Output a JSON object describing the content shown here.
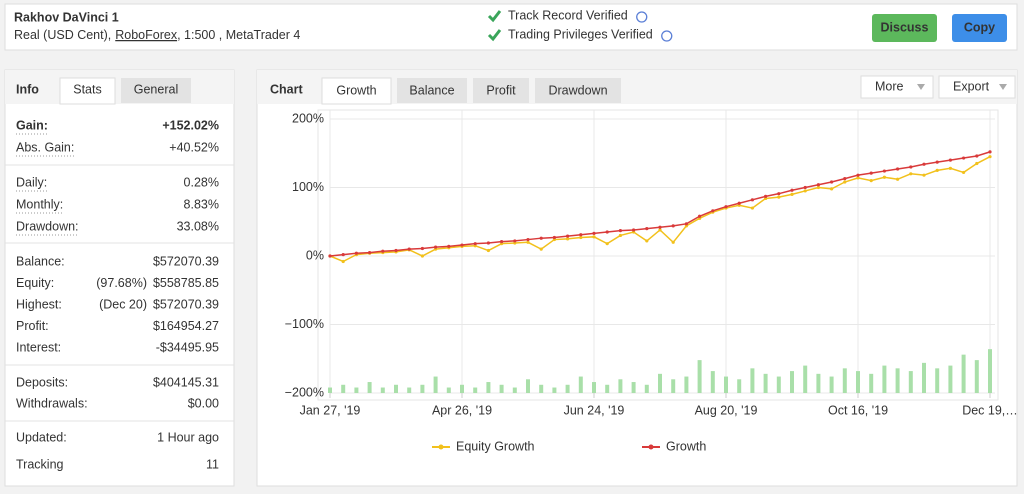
{
  "header": {
    "title": "Rakhov DaVinci 1",
    "account": "Real (USD Cent),",
    "broker": "RoboForex",
    "platform": ", 1:500 , MetaTrader 4",
    "verifications": [
      "Track Record Verified",
      "Trading Privileges Verified"
    ],
    "buttons": [
      "Discuss",
      "Copy"
    ]
  },
  "info": {
    "tabs": [
      "Info",
      "Stats",
      "General"
    ],
    "groups": [
      [
        {
          "label": "Gain:",
          "value": "+152.02%",
          "color": "#1e9e2c"
        },
        {
          "label": "Abs. Gain:",
          "value": "+40.52%",
          "color": "#1e9e2c"
        }
      ],
      [
        {
          "label": "Daily:",
          "value": "0.28%"
        },
        {
          "label": "Monthly:",
          "value": "8.83%"
        },
        {
          "label": "Drawdown:",
          "value": "33.08%"
        }
      ],
      [
        {
          "label": "Balance:",
          "value": "$572070.39"
        },
        {
          "label": "Equity:",
          "note": "(97.68%)",
          "value": "$558785.85"
        },
        {
          "label": "Highest:",
          "note": "(Dec 20)",
          "value": "$572070.39"
        },
        {
          "label": "Profit:",
          "value": "$164954.27",
          "color": "#1e9e2c"
        },
        {
          "label": "Interest:",
          "value": "-$34495.95"
        }
      ],
      [
        {
          "label": "Deposits:",
          "value": "$404145.31"
        },
        {
          "label": "Withdrawals:",
          "value": "$0.00"
        }
      ],
      [
        {
          "label": "Updated:",
          "value": "1 Hour ago"
        },
        {
          "label": "Tracking",
          "value": "11"
        }
      ]
    ]
  },
  "chart_panel": {
    "title": "Chart",
    "tabs": [
      "Growth",
      "Balance",
      "Profit",
      "Drawdown"
    ],
    "menus": [
      "More",
      "Export"
    ]
  },
  "chart_data": {
    "type": "line",
    "categories": [
      "Jan 27, '19",
      null,
      null,
      null,
      null,
      null,
      null,
      null,
      null,
      null,
      "Apr 26, '19",
      null,
      null,
      null,
      null,
      null,
      null,
      null,
      null,
      null,
      "Jun 24, '19",
      null,
      null,
      null,
      null,
      null,
      null,
      null,
      null,
      null,
      "Aug 20, '19",
      null,
      null,
      null,
      null,
      null,
      null,
      null,
      null,
      null,
      "Oct 16, '19",
      null,
      null,
      null,
      null,
      null,
      null,
      null,
      null,
      null,
      "Dec 19,…"
    ],
    "series": [
      {
        "name": "Equity Growth",
        "color": "#f2c11c",
        "values": [
          0,
          -8,
          2,
          4,
          5,
          6,
          9,
          0,
          10,
          12,
          14,
          15,
          8,
          18,
          19,
          20,
          10,
          24,
          25,
          27,
          28,
          18,
          30,
          35,
          22,
          38,
          20,
          44,
          55,
          64,
          70,
          74,
          70,
          84,
          86,
          90,
          95,
          100,
          98,
          108,
          114,
          110,
          115,
          112,
          120,
          118,
          125,
          128,
          122,
          135,
          145
        ]
      },
      {
        "name": "Growth",
        "color": "#d93a3a",
        "values": [
          0,
          2,
          4,
          5,
          7,
          8,
          10,
          11,
          13,
          14,
          16,
          18,
          19,
          21,
          22,
          24,
          26,
          27,
          29,
          31,
          33,
          35,
          37,
          38,
          40,
          42,
          44,
          47,
          58,
          66,
          72,
          77,
          82,
          87,
          91,
          96,
          100,
          104,
          108,
          113,
          118,
          121,
          124,
          127,
          130,
          134,
          137,
          140,
          143,
          146,
          152
        ]
      },
      {
        "color": "#a9dfa9",
        "axis": "y2",
        "values": [
          2,
          3,
          2,
          4,
          2,
          3,
          2,
          3,
          6,
          2,
          3,
          2,
          4,
          3,
          2,
          5,
          3,
          2,
          3,
          6,
          4,
          3,
          5,
          4,
          3,
          7,
          5,
          6,
          12,
          8,
          6,
          5,
          9,
          7,
          6,
          8,
          10,
          7,
          6,
          9,
          8,
          7,
          10,
          9,
          8,
          11,
          9,
          10,
          14,
          12,
          16
        ]
      }
    ],
    "ylim": [
      -200,
      200
    ],
    "yticks": [
      {
        "value": -200,
        "label": "−200%"
      },
      {
        "value": -100,
        "label": "−100%"
      },
      {
        "value": 0,
        "label": "0%"
      },
      {
        "value": 100,
        "label": "100%"
      },
      {
        "value": 200,
        "label": "200%"
      }
    ],
    "y2lim": [
      0,
      100
    ],
    "grid": true
  }
}
